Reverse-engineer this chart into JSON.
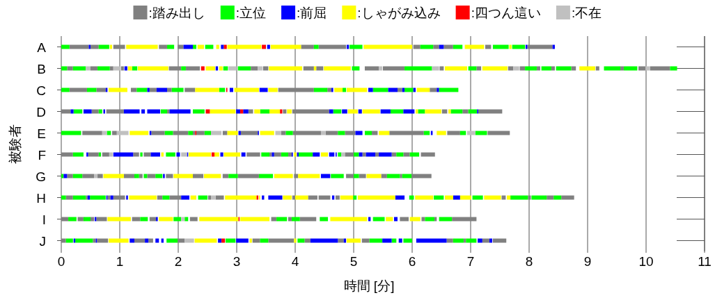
{
  "chart_data": {
    "type": "bar",
    "orientation": "horizontal",
    "xlabel": "時間 [分]",
    "ylabel": "被験者",
    "categories": [
      "A",
      "B",
      "C",
      "D",
      "E",
      "F",
      "G",
      "H",
      "I",
      "J"
    ],
    "xlim": [
      0,
      11
    ],
    "xticks": [
      0,
      1,
      2,
      3,
      4,
      5,
      6,
      7,
      8,
      9,
      10,
      11
    ],
    "grid": "x",
    "legend": "top",
    "series": [
      {
        "name": ":踏み出し",
        "color": "#808080",
        "base": [
          0.14,
          0.1,
          0.14,
          0,
          0.36,
          0,
          0.1,
          0.08,
          0,
          0
        ],
        "values": [
          0.33,
          0.1,
          0.3,
          0.16,
          0.34,
          0.2,
          0.1,
          0.12,
          0.12,
          0.08
        ]
      },
      {
        "color": "#808080",
        "base": [
          0.5,
          0.5,
          0.6,
          0.52,
          0.87,
          0.46,
          0.36,
          0.42,
          0.28,
          0.54
        ],
        "values": [
          0.14,
          0.12,
          0.16,
          0.12,
          0.08,
          0.18,
          0.2,
          0.03,
          0.1,
          0.05
        ]
      },
      {
        "color": "#808080",
        "base": [
          0.89,
          0.83,
          1.19,
          0.77,
          1.54,
          0.7,
          0.62,
          0.79,
          0.5,
          0.61
        ],
        "values": [
          0.2,
          0.06,
          0.1,
          0.3,
          0.23,
          0.12,
          0.09,
          0.05,
          0.06,
          0.19
        ]
      },
      {
        "color": "#808080",
        "base": [
          1.67,
          1.02,
          1.51,
          1.81,
          1.91,
          1.23,
          1.07,
          0.89,
          0.6,
          1.25
        ],
        "values": [
          0.14,
          0.05,
          0.12,
          0.04,
          0.26,
          0.1,
          0.18,
          0.2,
          0.18,
          0.18
        ]
      },
      {
        "color": "#808080",
        "base": [
          1.99,
          1.84,
          1.81,
          3.2,
          2.25,
          1.41,
          1.33,
          1.64,
          1.21,
          1.49
        ],
        "values": [
          0.1,
          0.21,
          0.08,
          0.08,
          0.04,
          0.12,
          0.06,
          0.09,
          0.14,
          0.08
        ]
      },
      {
        "color": "#808080",
        "base": [
          4.1,
          2.13,
          2.11,
          3.79,
          2.31,
          3.17,
          1.47,
          1.85,
          1.51,
          1.99
        ],
        "values": [
          0.22,
          0.24,
          0.18,
          0.06,
          0.14,
          0.23,
          0.14,
          0.2,
          0.11,
          0.12
        ]
      },
      {
        "color": "#808080",
        "base": [
          4.4,
          3.24,
          3.71,
          3.95,
          2.76,
          3.56,
          1.79,
          2.51,
          2.2,
          3.27
        ],
        "values": [
          0.47,
          0.12,
          0.61,
          0.63,
          0.08,
          0.04,
          0.12,
          0.05,
          0.13,
          0.13
        ]
      },
      {
        "color": "#808080",
        "base": [
          6.02,
          3.45,
          4.55,
          6.51,
          3.07,
          3.64,
          2.25,
          2.64,
          3.59,
          3.54
        ],
        "values": [
          0.12,
          0.09,
          0.07,
          0.09,
          0.29,
          0.12,
          0.18,
          0.14,
          0.09,
          0.44
        ]
      },
      {
        "color": "#808080",
        "base": [
          6.36,
          4.14,
          5.75,
          6.86,
          3.76,
          3.88,
          2.76,
          3.95,
          3.88,
          4.16
        ],
        "values": [
          0.1,
          0.18,
          0.08,
          0.1,
          0.08,
          0.06,
          0.1,
          0.05,
          0.06,
          0.1
        ]
      },
      {
        "color": "#808080",
        "base": [
          6.54,
          4.36,
          6.3,
          7.13,
          3.96,
          4.85,
          3.02,
          4.22,
          4.08,
          4.73
        ],
        "values": [
          0.16,
          0.12,
          0.12,
          0.41,
          0.48,
          0.15,
          0.36,
          0.16,
          0.28,
          0.1
        ]
      },
      {
        "color": "#808080",
        "base": [
          7.25,
          5.19,
          null,
          null,
          4.52,
          5.15,
          3.98,
          4.4,
          5.79,
          5.14
        ],
        "values": [
          0.1,
          0.24,
          null,
          null,
          0.21,
          0.06,
          0.07,
          0.2,
          0.15,
          0.13
        ]
      },
      {
        "color": "#808080",
        "base": [
          7.97,
          5.5,
          null,
          null,
          4.85,
          5.37,
          4.87,
          4.69,
          6.16,
          6.59
        ],
        "values": [
          0.43,
          0.37,
          null,
          null,
          0.18,
          0.06,
          0.13,
          0.07,
          0.06,
          0.11
        ]
      },
      {
        "color": "#808080",
        "base": [
          null,
          6.47,
          null,
          null,
          5.31,
          5.65,
          5.09,
          7.53,
          6.38,
          6.88
        ],
        "values": [
          null,
          0.07,
          null,
          null,
          0.1,
          0.08,
          0.12,
          0.07,
          0.04,
          0.04
        ]
      },
      {
        "color": "#808080",
        "base": [
          null,
          7.1,
          null,
          null,
          5.61,
          5.85,
          5.47,
          7.98,
          6.68,
          7.2
        ],
        "values": [
          null,
          0.08,
          null,
          null,
          0.59,
          0.11,
          0.1,
          0.05,
          0.42,
          0.12
        ]
      },
      {
        "color": "#808080",
        "base": [
          null,
          7.64,
          null,
          null,
          6.6,
          6.15,
          5.79,
          8.3,
          null,
          7.38
        ],
        "values": [
          null,
          0.09,
          null,
          null,
          0.22,
          0.24,
          0.04,
          0.12,
          null,
          0.23
        ]
      },
      {
        "color": "#808080",
        "base": [
          null,
          7.84,
          null,
          null,
          7.29,
          null,
          5.99,
          8.55,
          null,
          null
        ],
        "values": [
          null,
          0.09,
          null,
          null,
          0.38,
          null,
          0.34,
          0.22,
          null,
          null
        ]
      },
      {
        "color": "#808080",
        "base": [
          null,
          8.13,
          null,
          null,
          null,
          null,
          null,
          null,
          null,
          null
        ],
        "values": [
          null,
          0.06,
          null,
          null,
          null,
          null,
          null,
          null,
          null,
          null
        ]
      },
      {
        "color": "#808080",
        "base": [
          null,
          8.38,
          null,
          null,
          null,
          null,
          null,
          null,
          null,
          null
        ],
        "values": [
          null,
          0.06,
          null,
          null,
          null,
          null,
          null,
          null,
          null,
          null
        ]
      },
      {
        "color": "#808080",
        "base": [
          null,
          8.72,
          null,
          null,
          null,
          null,
          null,
          null,
          null,
          null
        ],
        "values": [
          null,
          0.08,
          null,
          null,
          null,
          null,
          null,
          null,
          null,
          null
        ]
      },
      {
        "color": "#808080",
        "base": [
          null,
          9.14,
          null,
          null,
          null,
          null,
          null,
          null,
          null,
          null
        ],
        "values": [
          null,
          0.06,
          null,
          null,
          null,
          null,
          null,
          null,
          null,
          null
        ]
      },
      {
        "color": "#808080",
        "base": [
          null,
          9.56,
          null,
          null,
          null,
          null,
          null,
          null,
          null,
          null
        ],
        "values": [
          null,
          0.06,
          null,
          null,
          null,
          null,
          null,
          null,
          null,
          null
        ]
      },
      {
        "color": "#808080",
        "base": [
          null,
          9.87,
          null,
          null,
          null,
          null,
          null,
          null,
          null,
          null
        ],
        "values": [
          null,
          0.12,
          null,
          null,
          null,
          null,
          null,
          null,
          null,
          null
        ]
      },
      {
        "color": "#808080",
        "base": [
          null,
          10.07,
          null,
          null,
          null,
          null,
          null,
          null,
          null,
          null
        ],
        "values": [
          null,
          0.34,
          null,
          null,
          null,
          null,
          null,
          null,
          null,
          null
        ]
      },
      {
        "name": ":立位",
        "color": "#00ff00",
        "base": [
          0,
          0,
          0,
          0.21,
          0,
          0.2,
          0,
          0,
          0.12,
          0.08
        ],
        "values": [
          0.14,
          0.1,
          0.14,
          0.15,
          0.34,
          0.18,
          0.04,
          0.08,
          0.14,
          0.12
        ]
      },
      {
        "color": "#00ff00",
        "base": [
          0.64,
          0.2,
          0.44,
          0.64,
          0.78,
          0.64,
          0.2,
          0.2,
          0.38,
          0.24
        ],
        "values": [
          0.18,
          0.22,
          0.16,
          0.06,
          0.07,
          0.04,
          0.16,
          0.22,
          0.12,
          0.3
        ]
      },
      {
        "color": "#00ff00",
        "base": [
          1.81,
          0.62,
          1.29,
          1.7,
          1.77,
          1.35,
          1.25,
          0.49,
          1.35,
          1.8
        ],
        "values": [
          0.12,
          0.21,
          0.18,
          0.11,
          0.14,
          0.04,
          0.08,
          0.27,
          0.13,
          0.19
        ]
      },
      {
        "color": "#00ff00",
        "base": [
          2.25,
          1.21,
          1.89,
          2.25,
          2.17,
          1.79,
          1.41,
          1.73,
          1.92,
          2.81
        ],
        "values": [
          0.06,
          0.09,
          0.2,
          0.2,
          0.08,
          0.16,
          0.06,
          0.12,
          0.13,
          0.17
        ]
      },
      {
        "color": "#00ff00",
        "base": [
          2.46,
          2.05,
          2.7,
          3.4,
          2.45,
          3.42,
          1.61,
          2.34,
          2.11,
          3.4
        ],
        "values": [
          0.14,
          0.08,
          0.1,
          0.16,
          0.11,
          0.14,
          0.12,
          0.16,
          0.06,
          0.14
        ]
      },
      {
        "color": "#00ff00",
        "base": [
          4.32,
          2.77,
          4.32,
          4.65,
          3.84,
          3.76,
          2.86,
          4.99,
          3.68,
          4.04
        ],
        "values": [
          0.08,
          0.08,
          0.23,
          0.14,
          0.12,
          0.12,
          0.16,
          0.06,
          0.18,
          0.12
        ]
      },
      {
        "color": "#00ff00",
        "base": [
          4.93,
          3.02,
          4.81,
          5.63,
          4.73,
          4.06,
          3.38,
          5.95,
          3.94,
          5.27
        ],
        "values": [
          0.22,
          0.22,
          0.06,
          0.22,
          0.12,
          0.24,
          0.24,
          0.08,
          0.14,
          0.22
        ]
      },
      {
        "color": "#00ff00",
        "base": [
          6.14,
          4.97,
          5.33,
          6.1,
          5.19,
          4.73,
          4.61,
          6.37,
          4.42,
          5.65
        ],
        "values": [
          0.22,
          0.13,
          0.26,
          0.12,
          0.12,
          0.06,
          0.22,
          0.17,
          0.14,
          0.08
        ]
      },
      {
        "color": "#00ff00",
        "base": [
          6.7,
          5.87,
          5.87,
          6.66,
          6.2,
          5.0,
          5.0,
          7.03,
          5.33,
          5.85
        ],
        "values": [
          0.16,
          0.47,
          0.15,
          0.2,
          0.1,
          0.09,
          0.09,
          0.18,
          0.2,
          0.15
        ]
      },
      {
        "color": "#00ff00",
        "base": [
          7.38,
          6.96,
          6.46,
          6.96,
          6.82,
          5.73,
          5.57,
          7.68,
          6.22,
          6.7
        ],
        "values": [
          0.27,
          0.14,
          0.33,
          0.15,
          0.1,
          0.12,
          0.22,
          0.3,
          0.16,
          0.18
        ]
      },
      {
        "color": "#00ff00",
        "base": [
          7.71,
          7.93,
          null,
          null,
          7.08,
          5.96,
          5.83,
          8.04,
          6.46,
          6.92
        ],
        "values": [
          0.22,
          0.2,
          null,
          null,
          0.2,
          0.16,
          0.16,
          0.26,
          0.22,
          0.18
        ]
      },
      {
        "color": "#00ff00",
        "base": [
          null,
          8.21,
          null,
          null,
          null,
          null,
          null,
          8.42,
          null,
          null
        ],
        "values": [
          null,
          0.17,
          null,
          null,
          null,
          null,
          null,
          0.13,
          null,
          null
        ]
      },
      {
        "color": "#00ff00",
        "base": [
          null,
          8.46,
          null,
          null,
          null,
          null,
          null,
          null,
          null,
          null
        ],
        "values": [
          null,
          0.26,
          null,
          null,
          null,
          null,
          null,
          null,
          null,
          null
        ]
      },
      {
        "color": "#00ff00",
        "base": [
          null,
          9.28,
          null,
          null,
          null,
          null,
          null,
          null,
          null,
          null
        ],
        "values": [
          null,
          0.28,
          null,
          null,
          null,
          null,
          null,
          null,
          null,
          null
        ]
      },
      {
        "color": "#00ff00",
        "base": [
          null,
          9.62,
          null,
          null,
          null,
          null,
          null,
          null,
          null,
          null
        ],
        "values": [
          null,
          0.23,
          null,
          null,
          null,
          null,
          null,
          null,
          null,
          null
        ]
      },
      {
        "color": "#00ff00",
        "base": [
          null,
          10.41,
          null,
          null,
          null,
          null,
          null,
          null,
          null,
          null
        ],
        "values": [
          null,
          0.12,
          null,
          null,
          null,
          null,
          null,
          null,
          null,
          null
        ]
      },
      {
        "name": ":前屈",
        "color": "#0000ff",
        "base": [
          0.47,
          1.08,
          0.76,
          0.16,
          1.51,
          0.43,
          0.04,
          0.45,
          0.57,
          0.21
        ],
        "values": [
          0.03,
          0.05,
          0.03,
          0.05,
          0.03,
          0.03,
          0.06,
          0.04,
          0.03,
          0.03
        ]
      },
      {
        "color": "#0000ff",
        "base": [
          2.09,
          2.64,
          1.47,
          0.38,
          3.03,
          0.89,
          1.74,
          0.77,
          1.62,
          0.59
        ],
        "values": [
          0.16,
          0.04,
          0.04,
          0.14,
          0.04,
          0.34,
          0.03,
          0.02,
          0.03,
          0.02
        ]
      },
      {
        "color": "#0000ff",
        "base": [
          2.73,
          null,
          1.63,
          0.72,
          3.36,
          1.53,
          4.44,
          0.84,
          5.25,
          1.17
        ],
        "values": [
          0.05,
          null,
          0.18,
          0.03,
          0.02,
          0.16,
          0.16,
          0.05,
          0.04,
          0.08
        ]
      },
      {
        "color": "#0000ff",
        "base": [
          3.52,
          null,
          2.88,
          1.07,
          5.03,
          1.97,
          null,
          1.11,
          5.69,
          1.43
        ],
        "values": [
          0.05,
          null,
          0.06,
          0.27,
          0.12,
          0.06,
          null,
          0.03,
          0.06,
          0.06
        ]
      },
      {
        "color": "#0000ff",
        "base": [
          4.88,
          null,
          3.39,
          1.37,
          6.32,
          2.15,
          null,
          2.05,
          null,
          1.61
        ],
        "values": [
          0.04,
          null,
          0.14,
          0.06,
          0.03,
          0.02,
          null,
          0.14,
          null,
          0.06
        ]
      },
      {
        "color": "#0000ff",
        "base": [
          6.46,
          null,
          4.62,
          1.47,
          null,
          2.72,
          null,
          3.43,
          null,
          1.71
        ],
        "values": [
          0.08,
          null,
          0.03,
          0.22,
          null,
          0.05,
          null,
          0.04,
          null,
          0.04
        ]
      },
      {
        "color": "#0000ff",
        "base": [
          7.94,
          null,
          5.25,
          1.85,
          null,
          3.08,
          null,
          3.54,
          null,
          2.68
        ],
        "values": [
          0.03,
          null,
          0.08,
          0.36,
          null,
          0.07,
          null,
          0.24,
          null,
          0.06
        ]
      },
      {
        "color": "#0000ff",
        "base": [
          8.4,
          null,
          5.59,
          2.99,
          null,
          3.6,
          null,
          4.63,
          null,
          2.99
        ],
        "values": [
          0.04,
          null,
          0.16,
          0.07,
          null,
          0.04,
          null,
          0.04,
          null,
          0.21
        ]
      },
      {
        "color": "#0000ff",
        "base": [
          null,
          null,
          5.83,
          3.11,
          null,
          3.94,
          null,
          5.71,
          null,
          4.26
        ],
        "values": [
          null,
          null,
          0.04,
          0.09,
          null,
          0.02,
          null,
          0.16,
          null,
          0.47
        ]
      },
      {
        "color": "#0000ff",
        "base": [
          null,
          null,
          6.02,
          4.58,
          null,
          4.03,
          null,
          6.7,
          null,
          4.83
        ],
        "values": [
          null,
          null,
          0.04,
          0.07,
          null,
          0.03,
          null,
          0.12,
          null,
          0.04
        ]
      },
      {
        "color": "#0000ff",
        "base": [
          null,
          null,
          6.42,
          4.8,
          null,
          4.3,
          null,
          null,
          null,
          5.49
        ],
        "values": [
          null,
          null,
          0.04,
          0.09,
          null,
          0.12,
          null,
          null,
          null,
          0.16
        ]
      },
      {
        "color": "#0000ff",
        "base": [
          null,
          null,
          null,
          5.08,
          null,
          4.58,
          null,
          null,
          null,
          5.77
        ],
        "values": [
          null,
          null,
          null,
          0.06,
          null,
          0.09,
          null,
          null,
          null,
          0.06
        ]
      },
      {
        "color": "#0000ff",
        "base": [
          null,
          null,
          null,
          5.46,
          null,
          4.69,
          null,
          null,
          null,
          6.07
        ],
        "values": [
          null,
          null,
          null,
          0.17,
          null,
          0.02,
          null,
          null,
          null,
          0.52
        ]
      },
      {
        "color": "#0000ff",
        "base": [
          null,
          null,
          null,
          5.85,
          null,
          5.09,
          null,
          null,
          null,
          7.12
        ],
        "values": [
          null,
          null,
          null,
          0.19,
          null,
          0.06,
          null,
          null,
          null,
          0.08
        ]
      },
      {
        "color": "#0000ff",
        "base": [
          null,
          null,
          null,
          7.11,
          null,
          5.21,
          null,
          null,
          null,
          7.32
        ],
        "values": [
          null,
          null,
          null,
          0.02,
          null,
          0.16,
          null,
          null,
          null,
          0.05
        ]
      },
      {
        "color": "#0000ff",
        "base": [
          null,
          null,
          null,
          null,
          null,
          5.43,
          null,
          null,
          null,
          null
        ],
        "values": [
          null,
          null,
          null,
          null,
          null,
          0.22,
          null,
          null,
          null,
          null
        ]
      },
      {
        "name": ":しゃがみ込み",
        "color": "#ffff00",
        "base": [
          0.83,
          1.14,
          0.81,
          2.54,
          1.17,
          1.71,
          0.72,
          1.16,
          0.79,
          0.81
        ],
        "values": [
          0.04,
          0.07,
          0.32,
          0.44,
          0.32,
          0.04,
          0.35,
          0.47,
          0.4,
          0.34
        ]
      },
      {
        "color": "#ffff00",
        "base": [
          1.11,
          1.31,
          2.29,
          3.3,
          2.84,
          2.18,
          1.92,
          2.21,
          1.67,
          2.28
        ],
        "values": [
          0.54,
          0.52,
          0.41,
          0.1,
          0.18,
          0.38,
          0.33,
          0.1,
          0.24,
          0.38
        ]
      },
      {
        "color": "#ffff00",
        "base": [
          2.33,
          2.47,
          2.96,
          3.56,
          3.4,
          2.62,
          2.44,
          2.8,
          2.36,
          3.22
        ],
        "values": [
          0.11,
          0.16,
          0.42,
          0.18,
          0.24,
          0.08,
          0.29,
          0.54,
          0.67,
          0.04
        ]
      },
      {
        "color": "#ffff00",
        "base": [
          2.65,
          2.7,
          3.54,
          3.86,
          5.43,
          2.78,
          3.64,
          3.38,
          3.06,
          3.98
        ],
        "values": [
          0.05,
          0.06,
          0.16,
          0.08,
          0.18,
          0.28,
          0.32,
          0.02,
          0.5,
          0.04
        ]
      },
      {
        "color": "#ffff00",
        "base": [
          2.84,
          3.55,
          4.67,
          4.9,
          6.42,
          3.98,
          4.05,
          3.79,
          4.6,
          4.88
        ],
        "values": [
          0.58,
          0.57,
          0.14,
          0.17,
          0.16,
          0.04,
          0.37,
          0.15,
          0.63,
          0.24
        ]
      },
      {
        "color": "#ffff00",
        "base": [
          3.58,
          4.32,
          4.88,
          5.15,
          null,
          4.44,
          5.22,
          4.0,
          5.55,
          null
        ],
        "values": [
          0.52,
          0.04,
          0.35,
          0.3,
          null,
          0.12,
          0.25,
          0.22,
          0.12,
          null
        ]
      },
      {
        "color": "#ffff00",
        "base": [
          5.17,
          4.49,
          6.08,
          6.06,
          null,
          null,
          null,
          4.77,
          5.96,
          null
        ],
        "values": [
          0.83,
          0.46,
          0.22,
          0.04,
          null,
          null,
          null,
          0.22,
          0.18,
          null
        ]
      },
      {
        "color": "#ffff00",
        "base": [
          6.9,
          6.56,
          null,
          6.22,
          null,
          null,
          null,
          5.07,
          null,
          null
        ],
        "values": [
          0.33,
          0.38,
          null,
          0.28,
          null,
          null,
          null,
          0.64,
          null,
          null
        ]
      },
      {
        "color": "#ffff00",
        "base": [
          7.66,
          7.2,
          null,
          6.62,
          null,
          null,
          null,
          6.05,
          null,
          null
        ],
        "values": [
          0.04,
          0.43,
          null,
          0.04,
          null,
          null,
          null,
          0.31,
          null,
          null
        ]
      },
      {
        "color": "#ffff00",
        "base": [
          null,
          8.86,
          null,
          null,
          null,
          null,
          null,
          6.56,
          null,
          null
        ],
        "values": [
          null,
          0.27,
          null,
          null,
          null,
          null,
          null,
          0.14,
          null,
          null
        ]
      },
      {
        "color": "#ffff00",
        "base": [
          null,
          null,
          null,
          null,
          null,
          null,
          null,
          6.82,
          null,
          null
        ],
        "values": [
          null,
          null,
          null,
          null,
          null,
          null,
          null,
          0.19,
          null,
          null
        ]
      },
      {
        "color": "#ffff00",
        "base": [
          null,
          null,
          null,
          null,
          null,
          null,
          null,
          7.23,
          null,
          null
        ],
        "values": [
          null,
          null,
          null,
          null,
          null,
          null,
          null,
          0.29,
          null,
          null
        ]
      },
      {
        "color": "#ffff00",
        "base": [
          null,
          null,
          null,
          null,
          null,
          null,
          null,
          7.62,
          null,
          null
        ],
        "values": [
          null,
          null,
          null,
          null,
          null,
          null,
          null,
          0.06,
          null,
          null
        ]
      },
      {
        "name": ":四つん這い",
        "color": "#ff0000",
        "base": [
          2.78,
          2.39,
          2.82,
          2.47,
          2.29,
          2.57,
          null,
          3.34,
          3.03,
          2.74
        ],
        "values": [
          0.05,
          0.06,
          0.02,
          0.07,
          0.02,
          0.05,
          null,
          0.03,
          0.02,
          0.06
        ]
      },
      {
        "color": "#ff0000",
        "base": [
          3.43,
          null,
          null,
          3.06,
          null,
          null,
          null,
          null,
          null,
          null
        ],
        "values": [
          0.07,
          null,
          null,
          0.05,
          null,
          null,
          null,
          null,
          null,
          null
        ]
      },
      {
        "color": "#ff0000",
        "base": [
          null,
          null,
          null,
          3.74,
          null,
          null,
          null,
          null,
          null,
          null
        ],
        "values": [
          null,
          null,
          null,
          0.04,
          null,
          null,
          null,
          null,
          null,
          null
        ]
      },
      {
        "name": ":不在",
        "color": "#c0c0c0",
        "base": [
          null,
          0.42,
          null,
          null,
          0.7,
          0.82,
          0.56,
          2.56,
          2.05,
          2.11
        ],
        "values": [
          null,
          0.08,
          null,
          null,
          0.08,
          0.06,
          0.06,
          0.08,
          0.06,
          0.16
        ]
      },
      {
        "color": "#c0c0c0",
        "base": [
          null,
          0.89,
          null,
          null,
          0.95,
          2.05,
          null,
          null,
          null,
          null
        ],
        "values": [
          null,
          0.12,
          null,
          null,
          0.2,
          0.1,
          null,
          null,
          null,
          null
        ]
      },
      {
        "color": "#c0c0c0",
        "base": [
          null,
          2.86,
          null,
          null,
          2.56,
          4.79,
          null,
          null,
          null,
          null
        ],
        "values": [
          null,
          0.14,
          null,
          null,
          0.18,
          0.06,
          null,
          null,
          null,
          null
        ]
      },
      {
        "color": "#c0c0c0",
        "base": [
          null,
          3.36,
          null,
          null,
          3.66,
          null,
          null,
          null,
          null,
          null
        ],
        "values": [
          null,
          0.08,
          null,
          null,
          0.1,
          null,
          null,
          null,
          null,
          null
        ]
      },
      {
        "color": "#c0c0c0",
        "base": [
          null,
          5.43,
          null,
          null,
          4.44,
          null,
          null,
          null,
          null,
          null
        ],
        "values": [
          null,
          0.06,
          null,
          null,
          0.08,
          null,
          null,
          null,
          null,
          null
        ]
      },
      {
        "color": "#c0c0c0",
        "base": [
          null,
          6.34,
          null,
          null,
          6.94,
          null,
          null,
          null,
          null,
          null
        ],
        "values": [
          null,
          0.12,
          null,
          null,
          0.14,
          null,
          null,
          null,
          null,
          null
        ]
      },
      {
        "color": "#c0c0c0",
        "base": [
          null,
          7.73,
          null,
          null,
          null,
          null,
          null,
          null,
          null,
          null
        ],
        "values": [
          null,
          0.1,
          null,
          null,
          null,
          null,
          null,
          null,
          null,
          null
        ]
      },
      {
        "color": "#c0c0c0",
        "base": [
          null,
          9.99,
          null,
          null,
          null,
          null,
          null,
          null,
          null,
          null
        ],
        "values": [
          null,
          0.08,
          null,
          null,
          null,
          null,
          null,
          null,
          null,
          null
        ]
      }
    ]
  }
}
